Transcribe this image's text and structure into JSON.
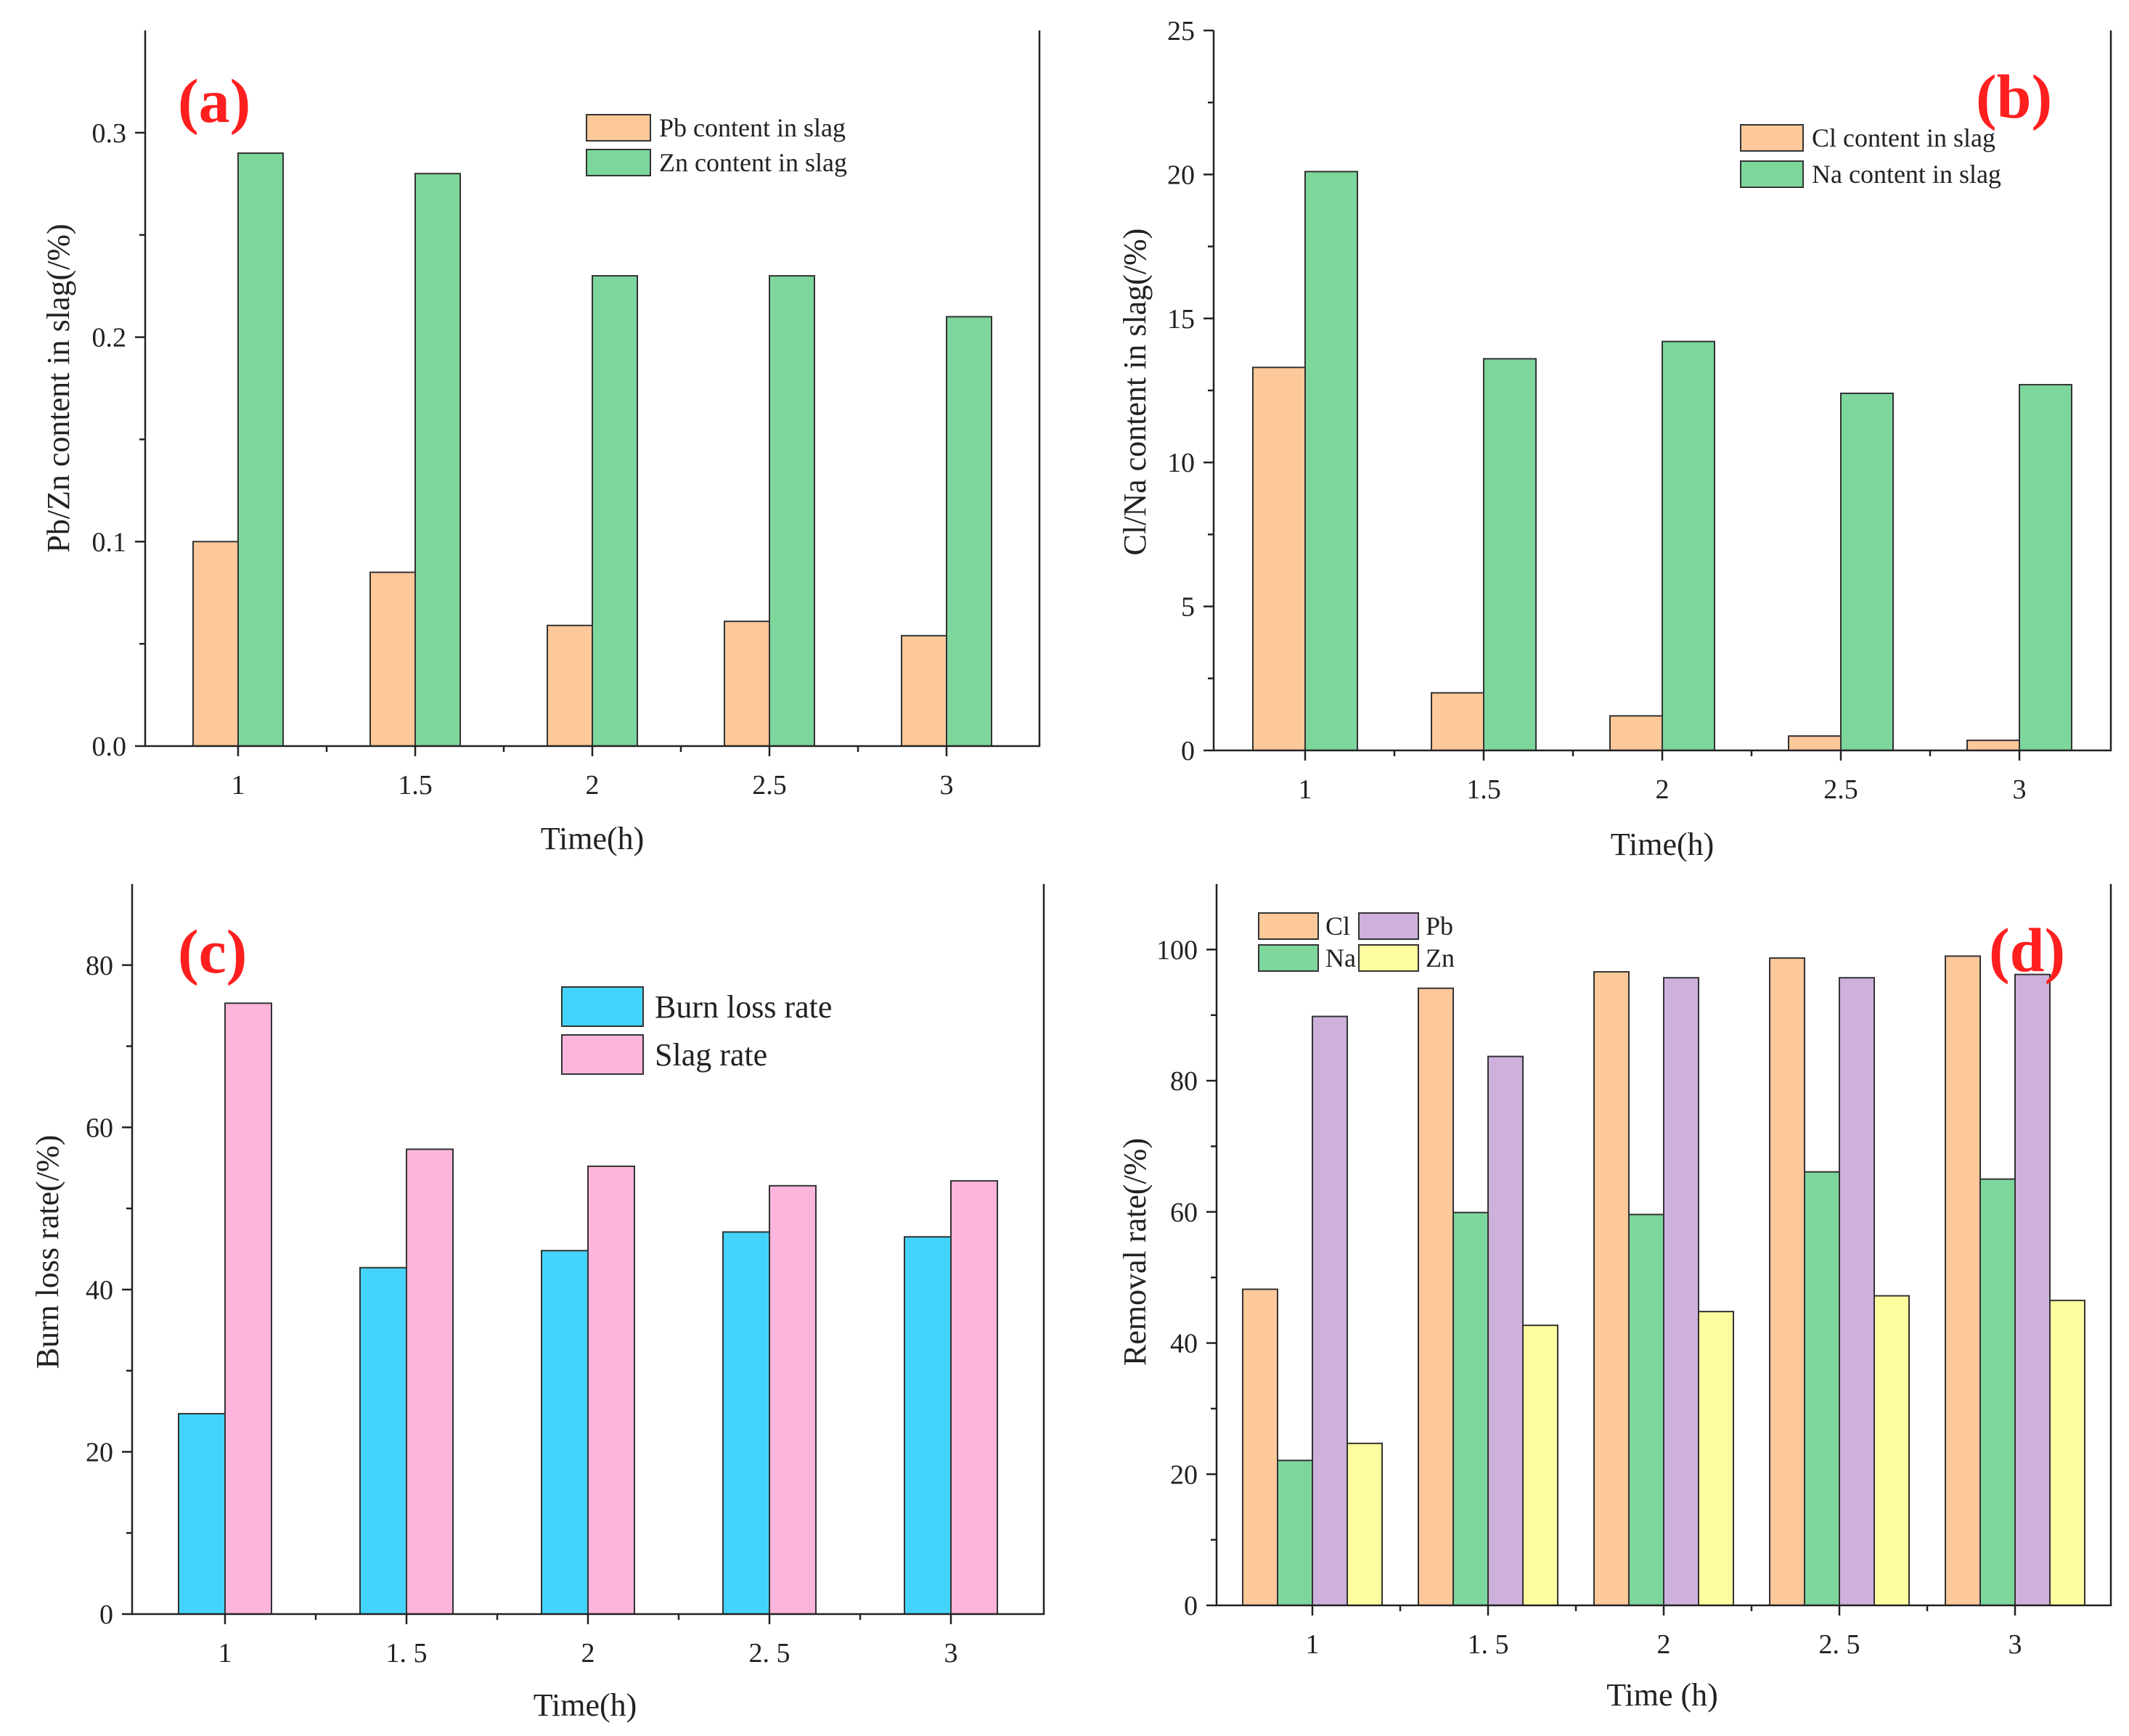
{
  "colors": {
    "orange": "#fdc89a",
    "green": "#7dd69c",
    "blue": "#44d4fb",
    "pink": "#fdb5dc",
    "purple": "#cdb0dc",
    "yellow": "#fdfc9f",
    "panel_letter": "#ff1f1f"
  },
  "chart_data": [
    {
      "panel": "(a)",
      "type": "bar",
      "xlabel": "Time(h)",
      "ylabel": "Pb/Zn content in slag(/%)",
      "categories": [
        "1",
        "1.5",
        "2",
        "2.5",
        "3"
      ],
      "ylim": [
        0,
        0.35
      ],
      "yticks": [
        "0.0",
        "0.1",
        "0.2",
        "0.3"
      ],
      "legend_position": "top-right",
      "series": [
        {
          "name": "Pb content in slag",
          "color_key": "orange",
          "values": [
            0.1,
            0.085,
            0.059,
            0.061,
            0.054
          ]
        },
        {
          "name": "Zn content in slag",
          "color_key": "green",
          "values": [
            0.29,
            0.28,
            0.23,
            0.23,
            0.21
          ]
        }
      ]
    },
    {
      "panel": "(b)",
      "type": "bar",
      "xlabel": "Time(h)",
      "ylabel": "Cl/Na content in slag(/%)",
      "categories": [
        "1",
        "1.5",
        "2",
        "2.5",
        "3"
      ],
      "ylim": [
        0,
        25
      ],
      "yticks": [
        "0",
        "5",
        "10",
        "15",
        "20",
        "25"
      ],
      "legend_position": "top-right",
      "series": [
        {
          "name": "Cl content in slag",
          "color_key": "orange",
          "values": [
            13.3,
            2.0,
            1.2,
            0.5,
            0.35
          ]
        },
        {
          "name": "Na content in slag",
          "color_key": "green",
          "values": [
            20.1,
            13.6,
            14.2,
            12.4,
            12.7
          ]
        }
      ]
    },
    {
      "panel": "(c)",
      "type": "bar",
      "xlabel": "Time(h)",
      "ylabel": "Burn loss rate(/%)",
      "categories": [
        "1",
        "1. 5",
        "2",
        "2. 5",
        "3"
      ],
      "ylim": [
        0,
        90
      ],
      "yticks": [
        "0",
        "20",
        "40",
        "60",
        "80"
      ],
      "legend_position": "top-center",
      "series": [
        {
          "name": "Burn loss rate",
          "color_key": "blue",
          "values": [
            24.7,
            42.7,
            44.8,
            47.1,
            46.5
          ]
        },
        {
          "name": "Slag rate",
          "color_key": "pink",
          "values": [
            75.3,
            57.3,
            55.2,
            52.8,
            53.4
          ]
        }
      ]
    },
    {
      "panel": "(d)",
      "type": "bar",
      "xlabel": "Time (h)",
      "ylabel": "Removal rate(/%)",
      "categories": [
        "1",
        "1. 5",
        "2",
        "2. 5",
        "3"
      ],
      "ylim": [
        0,
        110
      ],
      "yticks": [
        "0",
        "20",
        "40",
        "60",
        "80",
        "100"
      ],
      "legend_position": "top-left",
      "series": [
        {
          "name": "Cl",
          "color_key": "orange",
          "values": [
            48.2,
            94.1,
            96.6,
            98.7,
            99.0
          ]
        },
        {
          "name": "Na",
          "color_key": "green",
          "values": [
            22.1,
            59.9,
            59.6,
            66.1,
            65.0
          ]
        },
        {
          "name": "Pb",
          "color_key": "purple",
          "values": [
            89.8,
            83.7,
            95.7,
            95.7,
            96.2
          ]
        },
        {
          "name": "Zn",
          "color_key": "yellow",
          "values": [
            24.7,
            42.7,
            44.8,
            47.2,
            46.5
          ]
        }
      ]
    }
  ]
}
